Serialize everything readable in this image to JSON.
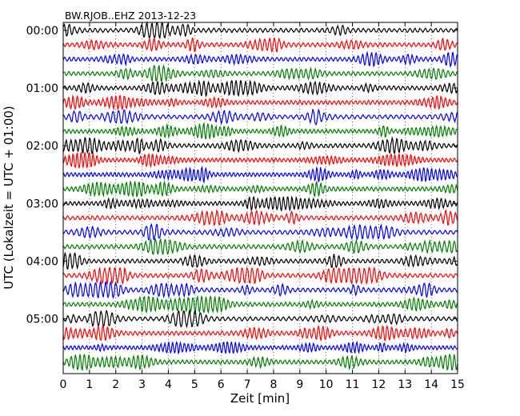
{
  "chart_data": {
    "type": "line",
    "title": "BW.RJOB..EHZ 2013-12-23",
    "xlabel": "Zeit  [min]",
    "ylabel": "UTC (Lokalzeit = UTC + 01:00)",
    "xlim": [
      0,
      15
    ],
    "x_ticks": [
      "0",
      "1",
      "2",
      "3",
      "4",
      "5",
      "6",
      "7",
      "8",
      "9",
      "10",
      "11",
      "12",
      "13",
      "14",
      "15"
    ],
    "y_ticks": [
      "00:00",
      "01:00",
      "02:00",
      "03:00",
      "04:00",
      "05:00"
    ],
    "rows_per_hour": 4,
    "row_count": 24,
    "row_interval_min": 15,
    "colors": [
      "#000000",
      "#ff0000",
      "#0000ff",
      "#008000"
    ],
    "grid": "vertical dotted",
    "legend": "none"
  }
}
